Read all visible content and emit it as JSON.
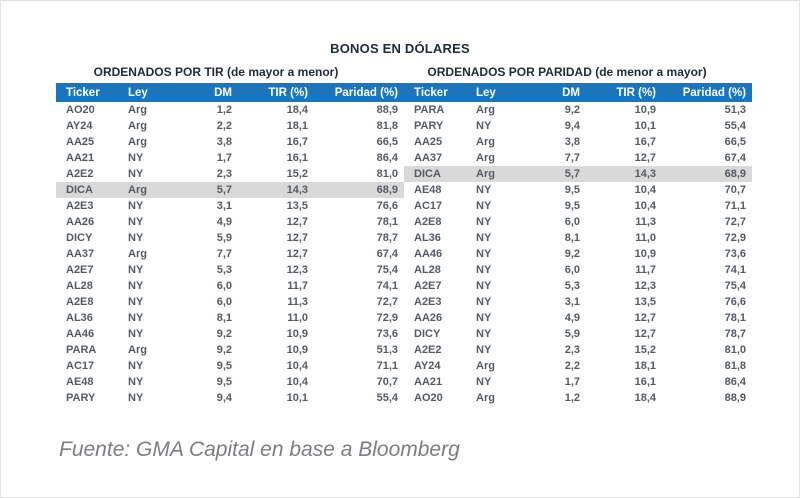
{
  "title": "BONOS EN DÓLARES",
  "source": "Fuente: GMA Capital en base a Bloomberg",
  "colors": {
    "header_bg": "#1B75BC",
    "header_text": "#FFFFFF",
    "highlight_row_bg": "#D9D9D9",
    "title_text": "#1F2B38",
    "data_text": "#555B63",
    "source_text": "#7C7C85"
  },
  "chart_data": [
    {
      "type": "table",
      "title": "ORDENADOS POR TIR (de mayor a menor)",
      "columns": [
        "Ticker",
        "Ley",
        "DM",
        "TIR (%)",
        "Paridad (%)"
      ],
      "highlight_ticker": "DICA",
      "rows": [
        [
          "AO20",
          "Arg",
          "1,2",
          "18,4",
          "88,9"
        ],
        [
          "AY24",
          "Arg",
          "2,2",
          "18,1",
          "81,8"
        ],
        [
          "AA25",
          "Arg",
          "3,8",
          "16,7",
          "66,5"
        ],
        [
          "AA21",
          "NY",
          "1,7",
          "16,1",
          "86,4"
        ],
        [
          "A2E2",
          "NY",
          "2,3",
          "15,2",
          "81,0"
        ],
        [
          "DICA",
          "Arg",
          "5,7",
          "14,3",
          "68,9"
        ],
        [
          "A2E3",
          "NY",
          "3,1",
          "13,5",
          "76,6"
        ],
        [
          "AA26",
          "NY",
          "4,9",
          "12,7",
          "78,1"
        ],
        [
          "DICY",
          "NY",
          "5,9",
          "12,7",
          "78,7"
        ],
        [
          "AA37",
          "Arg",
          "7,7",
          "12,7",
          "67,4"
        ],
        [
          "A2E7",
          "NY",
          "5,3",
          "12,3",
          "75,4"
        ],
        [
          "AL28",
          "NY",
          "6,0",
          "11,7",
          "74,1"
        ],
        [
          "A2E8",
          "NY",
          "6,0",
          "11,3",
          "72,7"
        ],
        [
          "AL36",
          "NY",
          "8,1",
          "11,0",
          "72,9"
        ],
        [
          "AA46",
          "NY",
          "9,2",
          "10,9",
          "73,6"
        ],
        [
          "PARA",
          "Arg",
          "9,2",
          "10,9",
          "51,3"
        ],
        [
          "AC17",
          "NY",
          "9,5",
          "10,4",
          "71,1"
        ],
        [
          "AE48",
          "NY",
          "9,5",
          "10,4",
          "70,7"
        ],
        [
          "PARY",
          "NY",
          "9,4",
          "10,1",
          "55,4"
        ]
      ]
    },
    {
      "type": "table",
      "title": "ORDENADOS POR PARIDAD (de menor a mayor)",
      "columns": [
        "Ticker",
        "Ley",
        "DM",
        "TIR (%)",
        "Paridad (%)"
      ],
      "highlight_ticker": "DICA",
      "rows": [
        [
          "PARA",
          "Arg",
          "9,2",
          "10,9",
          "51,3"
        ],
        [
          "PARY",
          "NY",
          "9,4",
          "10,1",
          "55,4"
        ],
        [
          "AA25",
          "Arg",
          "3,8",
          "16,7",
          "66,5"
        ],
        [
          "AA37",
          "Arg",
          "7,7",
          "12,7",
          "67,4"
        ],
        [
          "DICA",
          "Arg",
          "5,7",
          "14,3",
          "68,9"
        ],
        [
          "AE48",
          "NY",
          "9,5",
          "10,4",
          "70,7"
        ],
        [
          "AC17",
          "NY",
          "9,5",
          "10,4",
          "71,1"
        ],
        [
          "A2E8",
          "NY",
          "6,0",
          "11,3",
          "72,7"
        ],
        [
          "AL36",
          "NY",
          "8,1",
          "11,0",
          "72,9"
        ],
        [
          "AA46",
          "NY",
          "9,2",
          "10,9",
          "73,6"
        ],
        [
          "AL28",
          "NY",
          "6,0",
          "11,7",
          "74,1"
        ],
        [
          "A2E7",
          "NY",
          "5,3",
          "12,3",
          "75,4"
        ],
        [
          "A2E3",
          "NY",
          "3,1",
          "13,5",
          "76,6"
        ],
        [
          "AA26",
          "NY",
          "4,9",
          "12,7",
          "78,1"
        ],
        [
          "DICY",
          "NY",
          "5,9",
          "12,7",
          "78,7"
        ],
        [
          "A2E2",
          "NY",
          "2,3",
          "15,2",
          "81,0"
        ],
        [
          "AY24",
          "Arg",
          "2,2",
          "18,1",
          "81,8"
        ],
        [
          "AA21",
          "NY",
          "1,7",
          "16,1",
          "86,4"
        ],
        [
          "AO20",
          "Arg",
          "1,2",
          "18,4",
          "88,9"
        ]
      ]
    }
  ]
}
